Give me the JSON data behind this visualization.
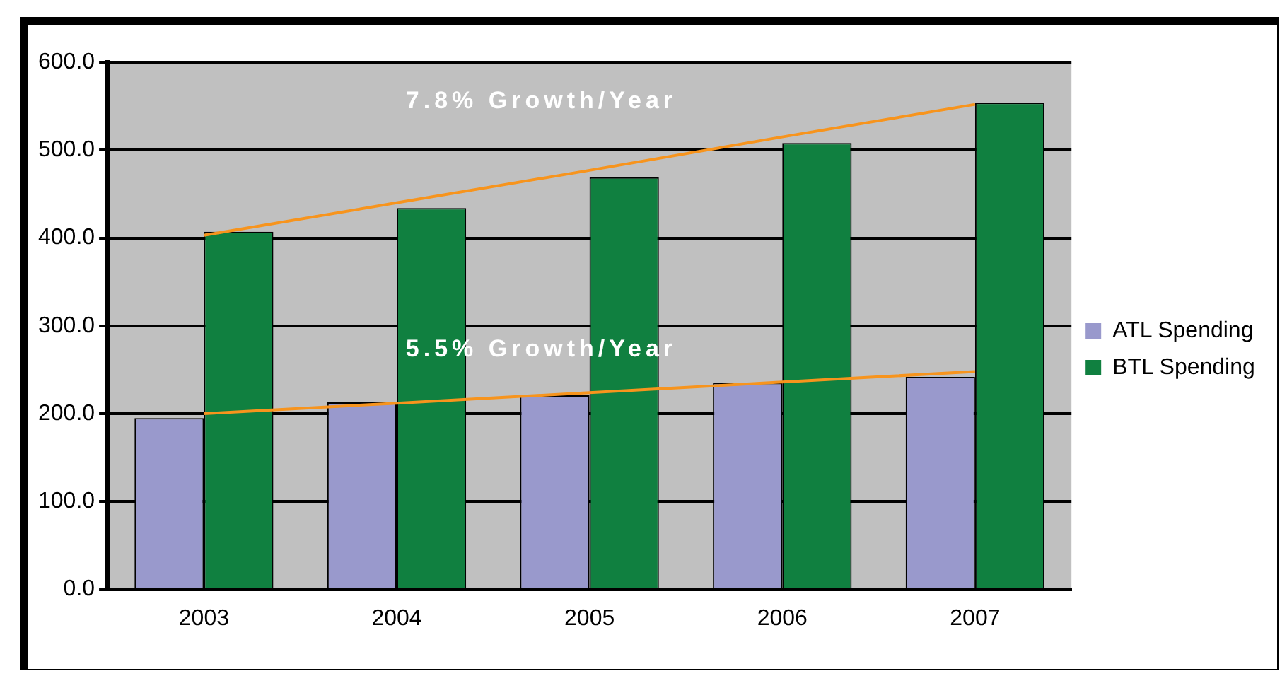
{
  "chart_data": {
    "type": "bar",
    "categories": [
      "2003",
      "2004",
      "2005",
      "2006",
      "2007"
    ],
    "series": [
      {
        "name": "ATL Spending",
        "color": "#9999cc",
        "values": [
          195,
          213,
          221,
          235,
          242
        ]
      },
      {
        "name": "BTL Spending",
        "color": "#108040",
        "values": [
          407,
          434,
          469,
          508,
          554
        ]
      },
      {
        "type": "line",
        "color": "#f7941d",
        "values": [
          403,
          440,
          477,
          515,
          552
        ]
      },
      {
        "type": "line",
        "color": "#f7941d",
        "values": [
          200,
          212,
          224,
          236,
          248
        ]
      }
    ],
    "annotations": [
      "7.8% Growth/Year",
      "5.5% Growth/Year"
    ],
    "ylim": [
      0,
      600
    ],
    "yticks": [
      {
        "value": 0,
        "label": "0.0"
      },
      {
        "value": 100,
        "label": "100.0"
      },
      {
        "value": 200,
        "label": "200.0"
      },
      {
        "value": 300,
        "label": "300.0"
      },
      {
        "value": 400,
        "label": "400.0"
      },
      {
        "value": 500,
        "label": "500.0"
      },
      {
        "value": 600,
        "label": "600.0"
      }
    ],
    "grid": "y",
    "legend": "right",
    "marker": "none"
  }
}
